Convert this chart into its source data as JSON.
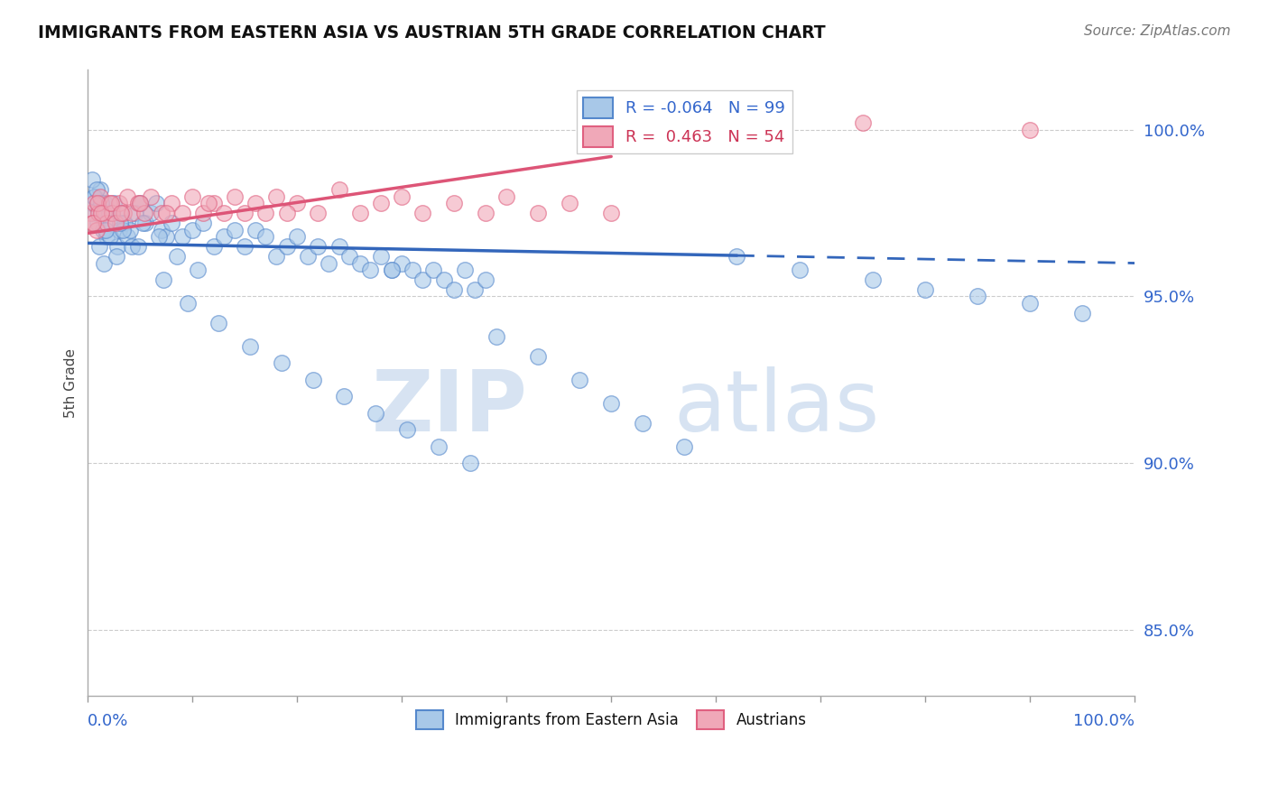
{
  "title": "IMMIGRANTS FROM EASTERN ASIA VS AUSTRIAN 5TH GRADE CORRELATION CHART",
  "source": "Source: ZipAtlas.com",
  "ylabel": "5th Grade",
  "ytick_values": [
    85.0,
    90.0,
    95.0,
    100.0
  ],
  "ylim": [
    83.0,
    101.8
  ],
  "xlim": [
    0.0,
    100.0
  ],
  "blue_R": -0.064,
  "blue_N": 99,
  "pink_R": 0.463,
  "pink_N": 54,
  "blue_color": "#a8c8e8",
  "pink_color": "#f0a8b8",
  "blue_edge_color": "#5588cc",
  "pink_edge_color": "#e06080",
  "blue_line_color": "#3366bb",
  "pink_line_color": "#dd5577",
  "watermark_zip": "ZIP",
  "watermark_atlas": "atlas",
  "watermark_color": "#d0dff0",
  "legend_label_blue": "Immigrants from Eastern Asia",
  "legend_label_pink": "Austrians",
  "blue_trend_start_y": 96.6,
  "blue_trend_end_y": 96.0,
  "pink_trend_start_y": 96.9,
  "pink_trend_end_y": 99.2,
  "pink_trend_end_x": 50.0,
  "blue_solid_end_x": 62.0,
  "blue_scatter_x": [
    0.3,
    0.5,
    0.7,
    0.9,
    1.0,
    1.2,
    1.4,
    1.6,
    1.8,
    2.0,
    2.2,
    2.5,
    2.8,
    3.0,
    3.2,
    3.5,
    3.8,
    4.0,
    4.5,
    5.0,
    5.5,
    6.0,
    6.5,
    7.0,
    7.5,
    8.0,
    9.0,
    10.0,
    11.0,
    12.0,
    13.0,
    14.0,
    15.0,
    16.0,
    17.0,
    18.0,
    19.0,
    20.0,
    21.0,
    22.0,
    23.0,
    24.0,
    25.0,
    26.0,
    27.0,
    28.0,
    29.0,
    30.0,
    31.0,
    32.0,
    33.0,
    34.0,
    35.0,
    36.0,
    37.0,
    38.0,
    1.1,
    1.5,
    2.1,
    2.7,
    3.3,
    4.2,
    5.2,
    6.8,
    8.5,
    10.5,
    0.4,
    0.6,
    0.8,
    1.3,
    1.7,
    2.3,
    3.1,
    4.8,
    7.2,
    9.5,
    12.5,
    15.5,
    18.5,
    21.5,
    24.5,
    27.5,
    30.5,
    33.5,
    36.5,
    39.0,
    43.0,
    47.0,
    50.0,
    53.0,
    57.0,
    62.0,
    68.0,
    75.0,
    80.0,
    85.0,
    90.0,
    95.0,
    29.0
  ],
  "blue_scatter_y": [
    97.8,
    97.5,
    98.0,
    97.2,
    97.6,
    98.2,
    97.0,
    97.8,
    96.8,
    97.5,
    97.2,
    97.8,
    96.5,
    97.0,
    97.5,
    97.2,
    96.8,
    97.0,
    97.5,
    97.8,
    97.2,
    97.5,
    97.8,
    97.0,
    96.8,
    97.2,
    96.8,
    97.0,
    97.2,
    96.5,
    96.8,
    97.0,
    96.5,
    97.0,
    96.8,
    96.2,
    96.5,
    96.8,
    96.2,
    96.5,
    96.0,
    96.5,
    96.2,
    96.0,
    95.8,
    96.2,
    95.8,
    96.0,
    95.8,
    95.5,
    95.8,
    95.5,
    95.2,
    95.8,
    95.2,
    95.5,
    96.5,
    96.0,
    96.8,
    96.2,
    97.0,
    96.5,
    97.2,
    96.8,
    96.2,
    95.8,
    98.5,
    98.0,
    98.2,
    97.8,
    97.0,
    97.5,
    97.2,
    96.5,
    95.5,
    94.8,
    94.2,
    93.5,
    93.0,
    92.5,
    92.0,
    91.5,
    91.0,
    90.5,
    90.0,
    93.8,
    93.2,
    92.5,
    91.8,
    91.2,
    90.5,
    96.2,
    95.8,
    95.5,
    95.2,
    95.0,
    94.8,
    94.5,
    95.8
  ],
  "pink_scatter_x": [
    0.2,
    0.4,
    0.6,
    0.8,
    1.0,
    1.2,
    1.5,
    1.8,
    2.0,
    2.3,
    2.6,
    3.0,
    3.4,
    3.8,
    4.2,
    4.8,
    5.4,
    6.0,
    7.0,
    8.0,
    9.0,
    10.0,
    11.0,
    12.0,
    13.0,
    14.0,
    15.0,
    16.0,
    17.0,
    18.0,
    20.0,
    22.0,
    24.0,
    26.0,
    28.0,
    30.0,
    32.0,
    35.0,
    38.0,
    40.0,
    43.0,
    46.0,
    50.0,
    0.5,
    0.9,
    1.3,
    2.2,
    3.2,
    5.0,
    7.5,
    11.5,
    19.0,
    74.0,
    90.0
  ],
  "pink_scatter_y": [
    97.5,
    97.2,
    97.8,
    97.0,
    97.5,
    98.0,
    97.5,
    97.2,
    97.8,
    97.5,
    97.2,
    97.8,
    97.5,
    98.0,
    97.5,
    97.8,
    97.5,
    98.0,
    97.5,
    97.8,
    97.5,
    98.0,
    97.5,
    97.8,
    97.5,
    98.0,
    97.5,
    97.8,
    97.5,
    98.0,
    97.8,
    97.5,
    98.2,
    97.5,
    97.8,
    98.0,
    97.5,
    97.8,
    97.5,
    98.0,
    97.5,
    97.8,
    97.5,
    97.2,
    97.8,
    97.5,
    97.8,
    97.5,
    97.8,
    97.5,
    97.8,
    97.5,
    100.2,
    100.0
  ]
}
